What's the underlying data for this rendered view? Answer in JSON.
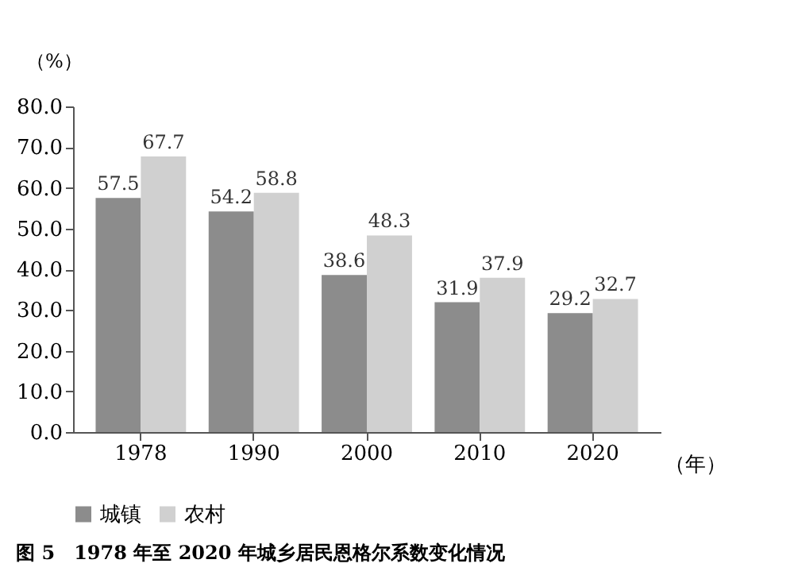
{
  "chart_data": {
    "type": "bar",
    "title": "图 5　1978 年至 2020 年城乡居民恩格尔系数变化情况",
    "categories": [
      "1978",
      "1990",
      "2000",
      "2010",
      "2020"
    ],
    "series": [
      {
        "name": "城镇",
        "color": "#8c8c8c",
        "values": [
          57.5,
          54.2,
          38.6,
          31.9,
          29.2
        ]
      },
      {
        "name": "农村",
        "color": "#d0d0d0",
        "values": [
          67.7,
          58.8,
          48.3,
          37.9,
          32.7
        ]
      }
    ],
    "xlabel": "（年）",
    "ylabel": "（%）",
    "ylim": [
      0,
      80
    ],
    "yticks": [
      {
        "value": 0,
        "label": "0.0"
      },
      {
        "value": 10,
        "label": "10.0"
      },
      {
        "value": 20,
        "label": "20.0"
      },
      {
        "value": 30,
        "label": "30.0"
      },
      {
        "value": 40,
        "label": "40.0"
      },
      {
        "value": 50,
        "label": "50.0"
      },
      {
        "value": 60,
        "label": "60.0"
      },
      {
        "value": 70,
        "label": "70.0"
      },
      {
        "value": 80,
        "label": "80.0"
      }
    ],
    "data_labels": true,
    "legend": "bottom",
    "grid": false
  }
}
